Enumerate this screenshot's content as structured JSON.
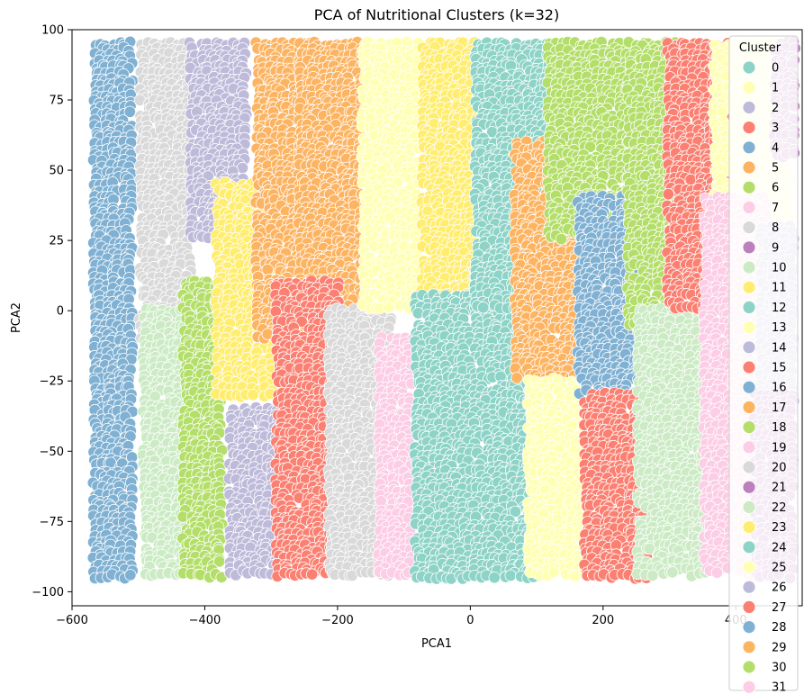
{
  "chart_data": {
    "type": "scatter",
    "title": "PCA of Nutritional Clusters (k=32)",
    "xlabel": "PCA1",
    "ylabel": "PCA2",
    "xlim": [
      -600,
      500
    ],
    "ylim": [
      -105,
      100
    ],
    "x_ticks": [
      -600,
      -400,
      -200,
      0,
      200,
      400
    ],
    "y_ticks": [
      -100,
      -75,
      -50,
      -25,
      0,
      25,
      50,
      75,
      100
    ],
    "x_tick_labels": [
      "−600",
      "−400",
      "−200",
      "0",
      "200",
      "400"
    ],
    "y_tick_labels": [
      "−100",
      "−75",
      "−50",
      "−25",
      "0",
      "25",
      "50",
      "75",
      "100"
    ],
    "grid": false,
    "legend": {
      "title": "Cluster",
      "placement": "right",
      "entries": [
        "0",
        "1",
        "2",
        "3",
        "4",
        "5",
        "6",
        "7",
        "8",
        "9",
        "10",
        "11",
        "12",
        "13",
        "14",
        "15",
        "16",
        "17",
        "18",
        "19",
        "20",
        "21",
        "22",
        "23",
        "24",
        "25",
        "26",
        "27",
        "28",
        "29",
        "30",
        "31"
      ]
    },
    "palette": [
      "#8dd3c7",
      "#ffffb3",
      "#bebada",
      "#fb8072",
      "#80b1d3",
      "#fdb462",
      "#b3de69",
      "#fccde5",
      "#d9d9d9",
      "#bc80bd",
      "#ccebc5",
      "#ffed6f"
    ],
    "point_count_approx": 19000,
    "series": [
      {
        "name": "4",
        "x": [
          -565,
          -505
        ],
        "y": [
          -95,
          95
        ]
      },
      {
        "name": "8",
        "x": [
          -495,
          -420
        ],
        "y": [
          -10,
          95
        ]
      },
      {
        "name": "10",
        "x": [
          -490,
          -415
        ],
        "y": [
          -95,
          0
        ]
      },
      {
        "name": "2",
        "x": [
          -420,
          -335
        ],
        "y": [
          25,
          95
        ]
      },
      {
        "name": "18",
        "x": [
          -430,
          -375
        ],
        "y": [
          -95,
          10
        ]
      },
      {
        "name": "11",
        "x": [
          -380,
          -300
        ],
        "y": [
          -30,
          45
        ]
      },
      {
        "name": "26",
        "x": [
          -360,
          -275
        ],
        "y": [
          -95,
          -35
        ]
      },
      {
        "name": "5",
        "x": [
          -320,
          -225
        ],
        "y": [
          -10,
          95
        ]
      },
      {
        "name": "29",
        "x": [
          -255,
          -160
        ],
        "y": [
          -10,
          95
        ]
      },
      {
        "name": "3",
        "x": [
          -290,
          -195
        ],
        "y": [
          -95,
          10
        ]
      },
      {
        "name": "20",
        "x": [
          -210,
          -120
        ],
        "y": [
          -95,
          0
        ]
      },
      {
        "name": "1",
        "x": [
          -160,
          -75
        ],
        "y": [
          0,
          95
        ]
      },
      {
        "name": "7",
        "x": [
          -135,
          -85
        ],
        "y": [
          -95,
          -10
        ]
      },
      {
        "name": "23",
        "x": [
          -70,
          15
        ],
        "y": [
          0,
          95
        ]
      },
      {
        "name": "12",
        "x": [
          -80,
          100
        ],
        "y": [
          -95,
          5
        ]
      },
      {
        "name": "0",
        "x": [
          10,
          130
        ],
        "y": [
          0,
          95
        ]
      },
      {
        "name": "17",
        "x": [
          70,
          170
        ],
        "y": [
          -25,
          60
        ]
      },
      {
        "name": "13",
        "x": [
          90,
          180
        ],
        "y": [
          -95,
          -25
        ]
      },
      {
        "name": "6",
        "x": [
          120,
          310
        ],
        "y": [
          25,
          95
        ]
      },
      {
        "name": "28",
        "x": [
          165,
          270
        ],
        "y": [
          -30,
          40
        ]
      },
      {
        "name": "15",
        "x": [
          175,
          265
        ],
        "y": [
          -95,
          -30
        ]
      },
      {
        "name": "30",
        "x": [
          240,
          315
        ],
        "y": [
          -5,
          95
        ]
      },
      {
        "name": "22",
        "x": [
          255,
          360
        ],
        "y": [
          -95,
          0
        ]
      },
      {
        "name": "27",
        "x": [
          300,
          390
        ],
        "y": [
          0,
          95
        ]
      },
      {
        "name": "25",
        "x": [
          370,
          480
        ],
        "y": [
          25,
          95
        ]
      },
      {
        "name": "19",
        "x": [
          355,
          445
        ],
        "y": [
          -95,
          40
        ]
      },
      {
        "name": "31",
        "x": [
          410,
          470
        ],
        "y": [
          -95,
          -40
        ]
      },
      {
        "name": "14",
        "x": [
          440,
          490
        ],
        "y": [
          -40,
          30
        ]
      },
      {
        "name": "21",
        "x": [
          430,
          490
        ],
        "y": [
          -95,
          -30
        ]
      },
      {
        "name": "9",
        "x": [
          460,
          490
        ],
        "y": [
          55,
          95
        ]
      }
    ]
  }
}
